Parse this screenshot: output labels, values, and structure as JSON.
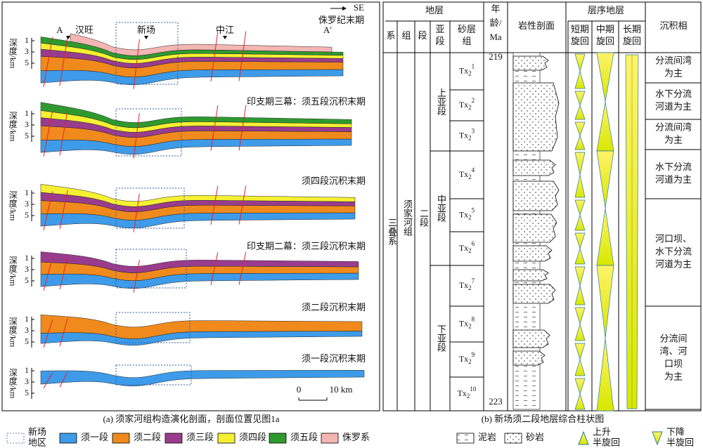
{
  "left": {
    "direction": "SE",
    "wells": [
      "A",
      "汉旺",
      "新场",
      "中江",
      "A′"
    ],
    "depth_label": "深度/km",
    "depth_ticks": [
      "1",
      "3",
      "5"
    ],
    "panels": [
      {
        "title": "侏罗纪末期"
      },
      {
        "title": "印支期三幕：须五段沉积末期"
      },
      {
        "title": "须四段沉积末期"
      },
      {
        "title": "印支期二幕：须三段沉积末期"
      },
      {
        "title": "须二段沉积末期"
      },
      {
        "title": "须一段沉积末期"
      }
    ],
    "scale": [
      "0",
      "10 km"
    ],
    "caption": "(a) 须家河组构造演化剖面，剖面位置见图1a"
  },
  "right": {
    "headers": {
      "strata": "地层",
      "system": "系",
      "formation": "组",
      "member": "段",
      "submember": [
        "亚",
        "段"
      ],
      "sand_group": [
        "砂层",
        "组"
      ],
      "age": [
        "年",
        "龄/",
        "Ma"
      ],
      "lithology": "岩性剖面",
      "sequence": "层序地层",
      "short": [
        "短期",
        "旋回"
      ],
      "middle": [
        "中期",
        "旋回"
      ],
      "long": [
        "长期",
        "旋回"
      ],
      "facies": "沉积相"
    },
    "system": "三叠系",
    "formation": "须家河组",
    "member": "二段",
    "submembers": [
      "上亚段",
      "中亚段",
      "下亚段"
    ],
    "sand_groups": [
      {
        "base": "Tx",
        "sub": "2",
        "sup": "1"
      },
      {
        "base": "Tx",
        "sub": "2",
        "sup": "2"
      },
      {
        "base": "Tx",
        "sub": "2",
        "sup": "3"
      },
      {
        "base": "Tx",
        "sub": "2",
        "sup": "4"
      },
      {
        "base": "Tx",
        "sub": "2",
        "sup": "5"
      },
      {
        "base": "Tx",
        "sub": "2",
        "sup": "6"
      },
      {
        "base": "Tx",
        "sub": "2",
        "sup": "7"
      },
      {
        "base": "Tx",
        "sub": "2",
        "sup": "8"
      },
      {
        "base": "Tx",
        "sub": "2",
        "sup": "9"
      },
      {
        "base": "Tx",
        "sub": "2",
        "sup": "10"
      }
    ],
    "age_top": "219",
    "age_bottom": "223",
    "facies": [
      [
        "分流间湾",
        "为主"
      ],
      [
        "水下分流",
        "河道为主"
      ],
      [
        "分流间湾",
        "为主"
      ],
      [
        "水下分流",
        "河道为主"
      ],
      [
        "河口坝、",
        "水下分流",
        "河道为主"
      ],
      [
        "分流间",
        "湾、河",
        "口坝",
        "为主"
      ]
    ],
    "caption": "(b) 新场须二段地层综合柱状图"
  },
  "legend": [
    [
      "新场",
      "地区"
    ],
    [
      "须一段"
    ],
    [
      "须二段"
    ],
    [
      "须三段"
    ],
    [
      "须四段"
    ],
    [
      "须五段"
    ],
    [
      "侏罗系"
    ],
    [
      "泥岩"
    ],
    [
      "砂岩"
    ],
    [
      "上升",
      "半旋回"
    ],
    [
      "下降",
      "半旋回"
    ]
  ]
}
